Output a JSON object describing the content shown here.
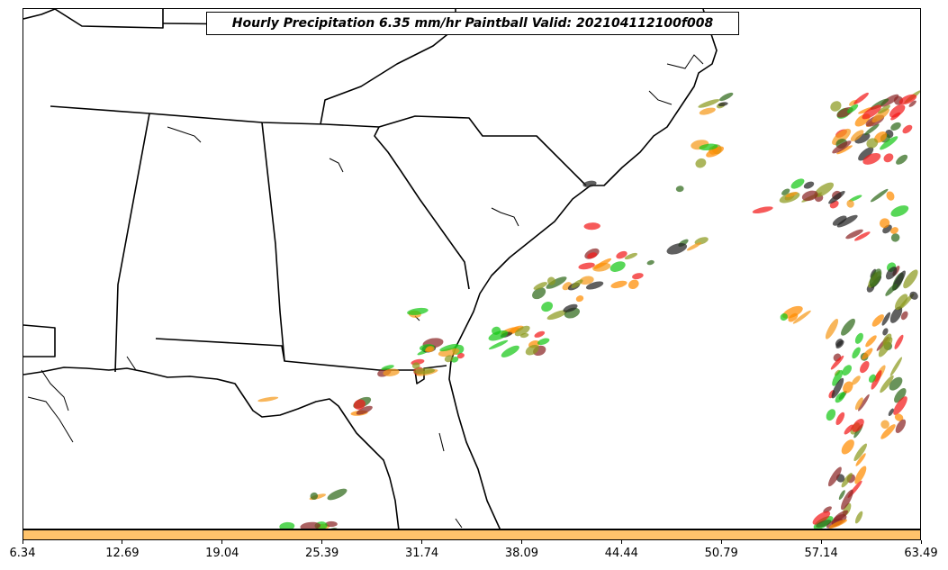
{
  "map": {
    "title": "Hourly Precipitation 6.35 mm/hr Paintball Valid: 202104112100f008"
  },
  "colorbar": {
    "color": "#ffc36b",
    "ticks": [
      "6.34",
      "12.69",
      "19.04",
      "25.39",
      "31.74",
      "38.09",
      "44.44",
      "50.79",
      "57.14",
      "63.49"
    ]
  },
  "paintball_colors": {
    "red": "#f21a1a",
    "orange": "#ff8c00",
    "amber": "#f59a1c",
    "olive": "#8c9a1e",
    "green": "#18c818",
    "dark_green": "#2f6a1a",
    "maroon": "#8b2525",
    "black": "#222222"
  }
}
